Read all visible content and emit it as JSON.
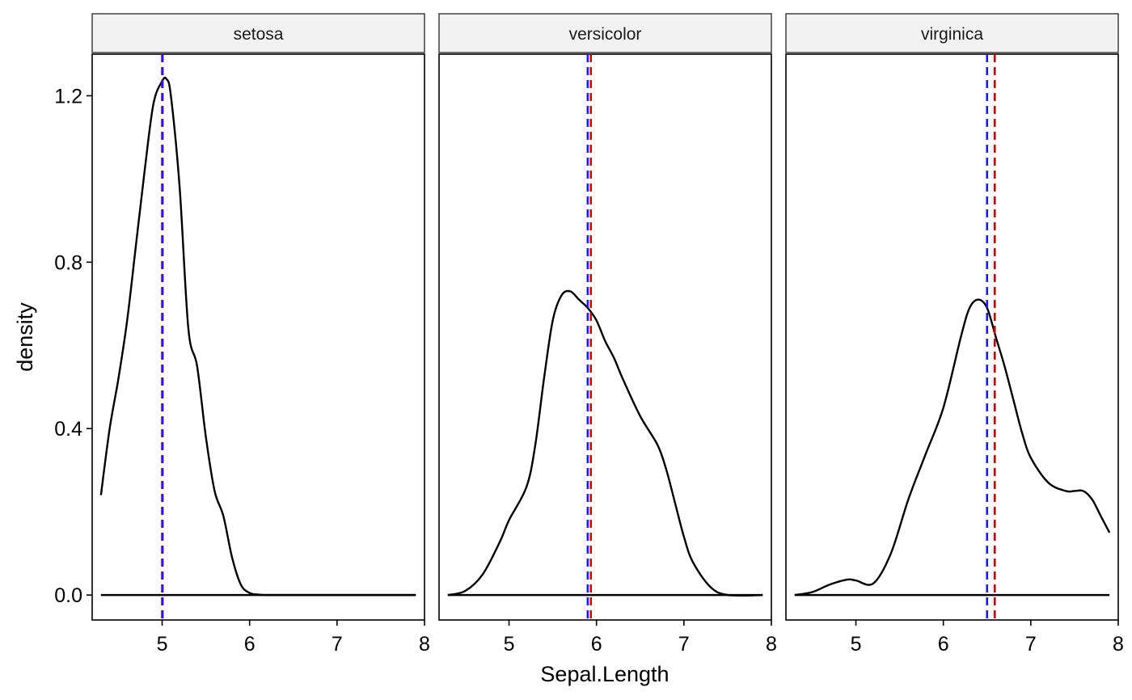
{
  "chart_data": {
    "type": "line",
    "subtype": "faceted density",
    "xlabel": "Sepal.Length",
    "ylabel": "density",
    "xlim": [
      4.2,
      8.0
    ],
    "ylim": [
      -0.06,
      1.3
    ],
    "x_ticks": [
      5,
      6,
      7,
      8
    ],
    "y_ticks": [
      0.0,
      0.4,
      0.8,
      1.2
    ],
    "y_tick_labels": [
      "0.0",
      "0.4",
      "0.8",
      "1.2"
    ],
    "grid": false,
    "colors": {
      "density": "#000000",
      "mean_line": "#d40000",
      "median_line": "#1a1aff",
      "strip_fill": "#f2f2f2"
    },
    "facets": [
      {
        "label": "setosa",
        "mean": 5.006,
        "median": 5.0,
        "density": {
          "x": [
            4.3,
            4.4,
            4.5,
            4.6,
            4.7,
            4.8,
            4.9,
            5.0,
            5.05,
            5.1,
            5.2,
            5.3,
            5.4,
            5.5,
            5.6,
            5.7,
            5.8,
            5.9,
            6.0,
            6.1,
            6.2,
            6.5,
            7.0,
            7.5,
            7.9
          ],
          "y": [
            0.24,
            0.4,
            0.52,
            0.66,
            0.84,
            1.02,
            1.18,
            1.235,
            1.24,
            1.2,
            0.98,
            0.64,
            0.55,
            0.38,
            0.25,
            0.19,
            0.09,
            0.025,
            0.005,
            0.001,
            0.0,
            0.0,
            0.0,
            0.0,
            0.0
          ]
        }
      },
      {
        "label": "versicolor",
        "mean": 5.936,
        "median": 5.9,
        "density": {
          "x": [
            4.3,
            4.5,
            4.7,
            4.9,
            5.0,
            5.2,
            5.3,
            5.4,
            5.5,
            5.6,
            5.7,
            5.8,
            5.9,
            6.0,
            6.1,
            6.2,
            6.3,
            6.5,
            6.7,
            6.8,
            6.9,
            7.0,
            7.1,
            7.3,
            7.5,
            7.9
          ],
          "y": [
            0.0,
            0.01,
            0.05,
            0.13,
            0.18,
            0.26,
            0.36,
            0.52,
            0.66,
            0.72,
            0.73,
            0.71,
            0.69,
            0.66,
            0.61,
            0.57,
            0.52,
            0.43,
            0.36,
            0.3,
            0.22,
            0.14,
            0.08,
            0.02,
            0.0,
            0.0
          ]
        }
      },
      {
        "label": "virginica",
        "mean": 6.588,
        "median": 6.5,
        "density": {
          "x": [
            4.3,
            4.5,
            4.7,
            4.9,
            5.0,
            5.2,
            5.4,
            5.6,
            5.8,
            6.0,
            6.2,
            6.3,
            6.4,
            6.5,
            6.6,
            6.7,
            6.8,
            6.9,
            7.0,
            7.2,
            7.4,
            7.5,
            7.6,
            7.7,
            7.8,
            7.9
          ],
          "y": [
            0.0,
            0.007,
            0.025,
            0.037,
            0.035,
            0.028,
            0.1,
            0.23,
            0.34,
            0.45,
            0.62,
            0.69,
            0.71,
            0.69,
            0.62,
            0.55,
            0.47,
            0.39,
            0.33,
            0.27,
            0.25,
            0.25,
            0.25,
            0.23,
            0.19,
            0.15
          ]
        }
      }
    ]
  }
}
